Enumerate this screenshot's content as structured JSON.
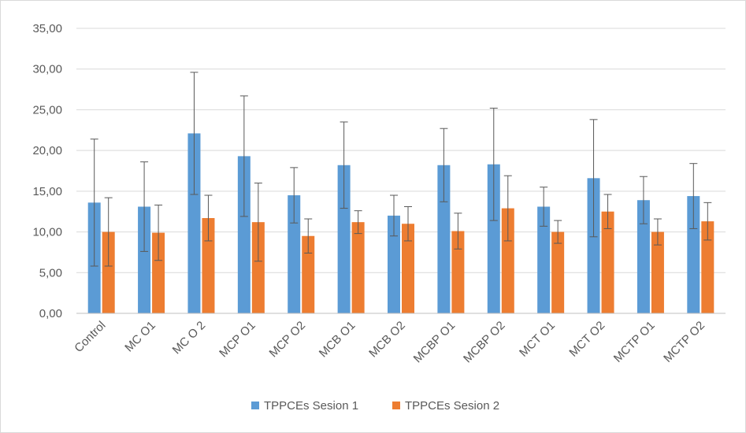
{
  "chart_data": {
    "type": "bar",
    "title": "",
    "xlabel": "",
    "ylabel": "",
    "ylim": [
      0,
      35
    ],
    "yticks": [
      "0,00",
      "5,00",
      "10,00",
      "15,00",
      "20,00",
      "25,00",
      "30,00",
      "35,00"
    ],
    "grid": true,
    "legend_position": "bottom",
    "categories": [
      "Control",
      "MC O1",
      "MC O 2",
      "MCP O1",
      "MCP O2",
      "MCB O1",
      "MCB O2",
      "MCBP O1",
      "MCBP O2",
      "MCT O1",
      "MCT O2",
      "MCTP O1",
      "MCTP O2"
    ],
    "series": [
      {
        "name": "TPPCEs Sesion 1",
        "color": "#5b9bd5",
        "values": [
          13.6,
          13.1,
          22.1,
          19.3,
          14.5,
          18.2,
          12.0,
          18.2,
          18.3,
          13.1,
          16.6,
          13.9,
          14.4
        ],
        "error": [
          7.8,
          5.5,
          7.5,
          7.4,
          3.4,
          5.3,
          2.5,
          4.5,
          6.9,
          2.4,
          7.2,
          2.9,
          4.0
        ]
      },
      {
        "name": "TPPCEs Sesion 2",
        "color": "#ed7d31",
        "values": [
          10.0,
          9.9,
          11.7,
          11.2,
          9.5,
          11.2,
          11.0,
          10.1,
          12.9,
          10.0,
          12.5,
          10.0,
          11.3
        ],
        "error": [
          4.2,
          3.4,
          2.8,
          4.8,
          2.1,
          1.4,
          2.1,
          2.2,
          4.0,
          1.4,
          2.1,
          1.6,
          2.3
        ]
      }
    ]
  }
}
